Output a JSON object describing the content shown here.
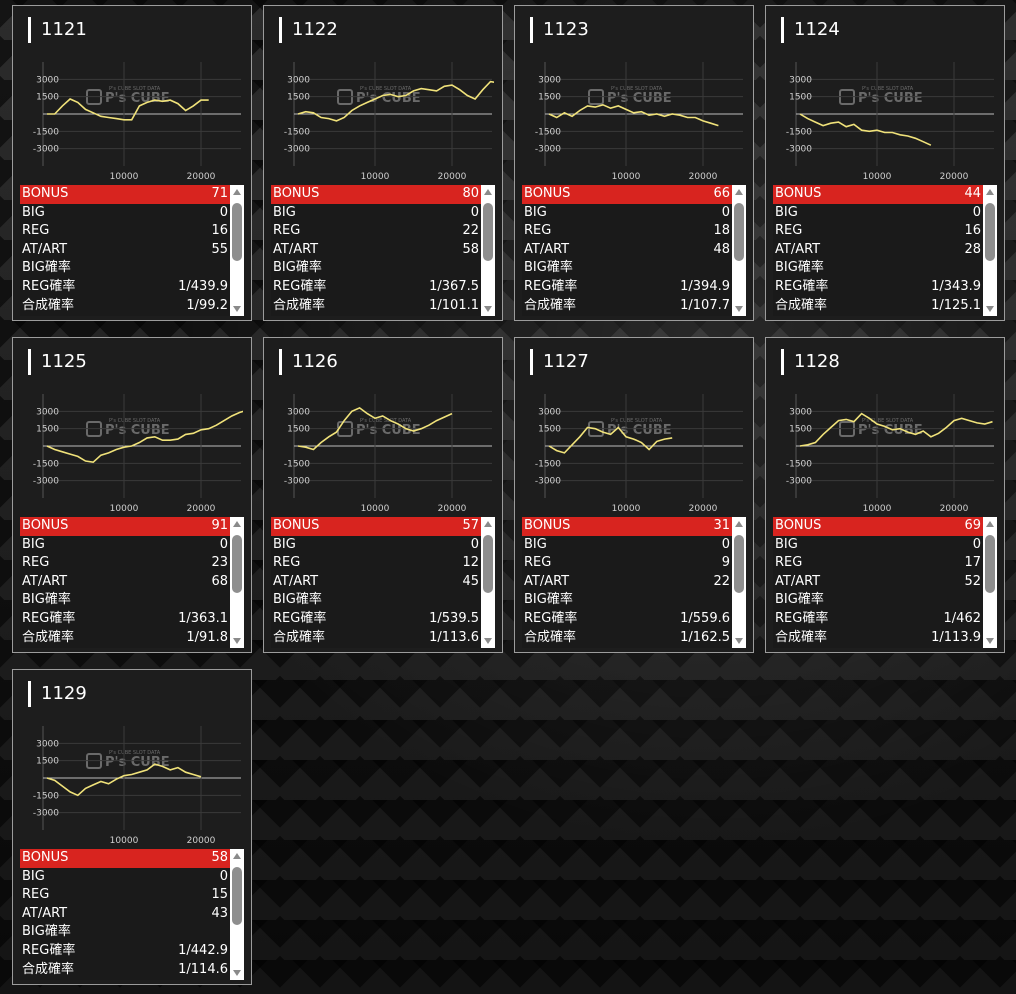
{
  "colors": {
    "accent": "#d8241f",
    "line": "#f0e27a",
    "card_bg": "#1d1d1d"
  },
  "watermark": {
    "logo": "P's CUBE",
    "tagline": "P's CUBE SLOT DATA"
  },
  "chart_axes": {
    "y_ticks": [
      "3000",
      "1500",
      "-1500",
      "-3000"
    ],
    "x_ticks": [
      "10000",
      "20000"
    ],
    "ylim": [
      -4500,
      4500
    ]
  },
  "labels": {
    "bonus": "BONUS",
    "big": "BIG",
    "reg": "REG",
    "atart": "AT/ART",
    "big_rate": "BIG確率",
    "reg_rate": "REG確率",
    "total_rate": "合成確率"
  },
  "machines": [
    {
      "id": "1121",
      "bonus": "71",
      "big": "0",
      "reg": "16",
      "atart": "55",
      "big_rate": "",
      "reg_rate": "1/439.9",
      "total_rate": "1/99.2",
      "chart_data": {
        "type": "line",
        "x": [
          0,
          1000,
          2000,
          3000,
          4000,
          5000,
          6000,
          7000,
          8000,
          9000,
          10000,
          11000,
          12000,
          13000,
          14000,
          15000,
          16000,
          17000,
          18000,
          19000,
          20000,
          21000
        ],
        "y": [
          0,
          0,
          700,
          1300,
          1000,
          400,
          100,
          -200,
          -300,
          -400,
          -500,
          -500,
          700,
          1000,
          1200,
          1100,
          1200,
          900,
          300,
          700,
          1200,
          1200
        ]
      }
    },
    {
      "id": "1122",
      "bonus": "80",
      "big": "0",
      "reg": "22",
      "atart": "58",
      "big_rate": "",
      "reg_rate": "1/367.5",
      "total_rate": "1/101.1",
      "chart_data": {
        "type": "line",
        "x": [
          0,
          1000,
          2000,
          3000,
          4000,
          5000,
          6000,
          7000,
          8000,
          9000,
          10000,
          11000,
          12000,
          13000,
          14000,
          15000,
          16000,
          17000,
          18000,
          19000,
          20000,
          21000,
          22000,
          23000,
          24000,
          25000,
          26000
        ],
        "y": [
          0,
          200,
          100,
          -300,
          -400,
          -600,
          -300,
          300,
          700,
          1000,
          1300,
          1600,
          1700,
          1500,
          1600,
          2000,
          2200,
          2100,
          2000,
          2400,
          2500,
          2100,
          1600,
          1300,
          2100,
          2800,
          2700
        ]
      }
    },
    {
      "id": "1123",
      "bonus": "66",
      "big": "0",
      "reg": "18",
      "atart": "48",
      "big_rate": "",
      "reg_rate": "1/394.9",
      "total_rate": "1/107.7",
      "chart_data": {
        "type": "line",
        "x": [
          0,
          1000,
          2000,
          3000,
          4000,
          5000,
          6000,
          7000,
          8000,
          9000,
          10000,
          11000,
          12000,
          13000,
          14000,
          15000,
          16000,
          17000,
          18000,
          19000,
          20000,
          21000,
          22000
        ],
        "y": [
          0,
          -300,
          100,
          -200,
          300,
          700,
          600,
          800,
          500,
          700,
          400,
          100,
          200,
          -100,
          0,
          -200,
          0,
          -100,
          -300,
          -300,
          -600,
          -800,
          -1000
        ]
      }
    },
    {
      "id": "1124",
      "bonus": "44",
      "big": "0",
      "reg": "16",
      "atart": "28",
      "big_rate": "",
      "reg_rate": "1/343.9",
      "total_rate": "1/125.1",
      "chart_data": {
        "type": "line",
        "x": [
          0,
          1000,
          2000,
          3000,
          4000,
          5000,
          6000,
          7000,
          8000,
          9000,
          10000,
          11000,
          12000,
          13000,
          14000,
          15000,
          16000,
          17000
        ],
        "y": [
          0,
          -400,
          -700,
          -1000,
          -800,
          -700,
          -1100,
          -900,
          -1400,
          -1500,
          -1400,
          -1600,
          -1600,
          -1800,
          -1900,
          -2100,
          -2400,
          -2700
        ]
      }
    },
    {
      "id": "1125",
      "bonus": "91",
      "big": "0",
      "reg": "23",
      "atart": "68",
      "big_rate": "",
      "reg_rate": "1/363.1",
      "total_rate": "1/91.8",
      "chart_data": {
        "type": "line",
        "x": [
          0,
          1000,
          2000,
          3000,
          4000,
          5000,
          6000,
          7000,
          8000,
          9000,
          10000,
          11000,
          12000,
          13000,
          14000,
          15000,
          16000,
          17000,
          18000,
          19000,
          20000,
          21000,
          22000,
          23000,
          24000,
          25000,
          26000
        ],
        "y": [
          0,
          -300,
          -500,
          -700,
          -900,
          -1300,
          -1400,
          -800,
          -600,
          -300,
          -100,
          0,
          300,
          700,
          800,
          500,
          500,
          600,
          1000,
          1100,
          1400,
          1500,
          1800,
          2200,
          2600,
          2900,
          3100
        ]
      }
    },
    {
      "id": "1126",
      "bonus": "57",
      "big": "0",
      "reg": "12",
      "atart": "45",
      "big_rate": "",
      "reg_rate": "1/539.5",
      "total_rate": "1/113.6",
      "chart_data": {
        "type": "line",
        "x": [
          0,
          1000,
          2000,
          3000,
          4000,
          5000,
          6000,
          7000,
          8000,
          9000,
          10000,
          11000,
          12000,
          13000,
          14000,
          15000,
          16000,
          17000,
          18000,
          19000,
          20000
        ],
        "y": [
          0,
          -100,
          -300,
          300,
          800,
          1200,
          2200,
          3000,
          3300,
          2800,
          2400,
          2600,
          2200,
          1900,
          1500,
          1300,
          1500,
          1800,
          2200,
          2500,
          2800
        ]
      }
    },
    {
      "id": "1127",
      "bonus": "31",
      "big": "0",
      "reg": "9",
      "atart": "22",
      "big_rate": "",
      "reg_rate": "1/559.6",
      "total_rate": "1/162.5",
      "chart_data": {
        "type": "line",
        "x": [
          0,
          1000,
          2000,
          3000,
          4000,
          5000,
          6000,
          7000,
          8000,
          9000,
          10000,
          11000,
          12000,
          13000,
          14000,
          15000,
          16000
        ],
        "y": [
          0,
          -400,
          -600,
          100,
          800,
          1600,
          1500,
          1200,
          1000,
          1600,
          800,
          600,
          300,
          -300,
          400,
          600,
          700
        ]
      }
    },
    {
      "id": "1128",
      "bonus": "69",
      "big": "0",
      "reg": "17",
      "atart": "52",
      "big_rate": "",
      "reg_rate": "1/462",
      "total_rate": "1/113.9",
      "chart_data": {
        "type": "line",
        "x": [
          0,
          1000,
          2000,
          3000,
          4000,
          5000,
          6000,
          7000,
          8000,
          9000,
          10000,
          11000,
          12000,
          13000,
          14000,
          15000,
          16000,
          17000,
          18000,
          19000,
          20000,
          21000,
          22000,
          23000,
          24000,
          25000
        ],
        "y": [
          0,
          100,
          300,
          1000,
          1600,
          2200,
          2300,
          2100,
          2800,
          2400,
          1900,
          1700,
          1400,
          1500,
          1200,
          1000,
          1300,
          800,
          1100,
          1600,
          2200,
          2400,
          2200,
          2000,
          1900,
          2100
        ]
      }
    },
    {
      "id": "1129",
      "bonus": "58",
      "big": "0",
      "reg": "15",
      "atart": "43",
      "big_rate": "",
      "reg_rate": "1/442.9",
      "total_rate": "1/114.6",
      "chart_data": {
        "type": "line",
        "x": [
          0,
          1000,
          2000,
          3000,
          4000,
          5000,
          6000,
          7000,
          8000,
          9000,
          10000,
          11000,
          12000,
          13000,
          14000,
          15000,
          16000,
          17000,
          18000,
          19000,
          20000
        ],
        "y": [
          0,
          -200,
          -700,
          -1200,
          -1500,
          -900,
          -600,
          -300,
          -500,
          -100,
          200,
          300,
          500,
          700,
          1200,
          1000,
          700,
          900,
          500,
          300,
          100
        ]
      }
    }
  ]
}
